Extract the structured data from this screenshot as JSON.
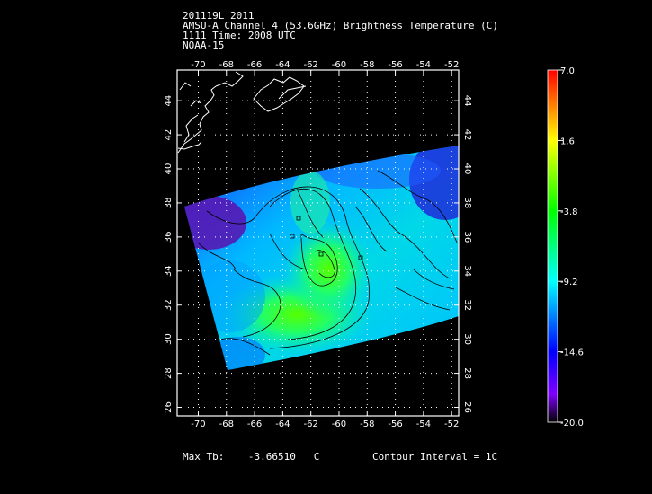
{
  "header": {
    "line1": "201119L 2011",
    "line2": "AMSU-A Channel 4 (53.6GHz) Brightness Temperature (C)",
    "line3": "1111 Time: 2008 UTC",
    "line4": "NOAA-15"
  },
  "map": {
    "lon_ticks": [
      "-70",
      "-68",
      "-66",
      "-64",
      "-62",
      "-60",
      "-58",
      "-56",
      "-54",
      "-52"
    ],
    "lat_ticks": [
      "44",
      "42",
      "40",
      "38",
      "36",
      "34",
      "32",
      "30",
      "28",
      "26"
    ],
    "lon_range": [
      -71.5,
      -51.5
    ],
    "lat_range": [
      25.5,
      45.8
    ],
    "frame_color": "#ffffff",
    "coast_color": "#ffffff",
    "contour_color": "#000000",
    "grid": "dotted"
  },
  "colorbar": {
    "labels": [
      "7.0",
      "1.6",
      "-3.8",
      "-9.2",
      "-14.6",
      "-20.0"
    ],
    "colors": [
      "#ff0000",
      "#ffff00",
      "#00ff00",
      "#00ffff",
      "#0000ff",
      "#7f00ff",
      "#000000"
    ]
  },
  "footer": {
    "max_label": "Max Tb:",
    "max_value": "-3.66510",
    "max_unit": "C",
    "contour_label": "Contour Interval = 1C"
  }
}
